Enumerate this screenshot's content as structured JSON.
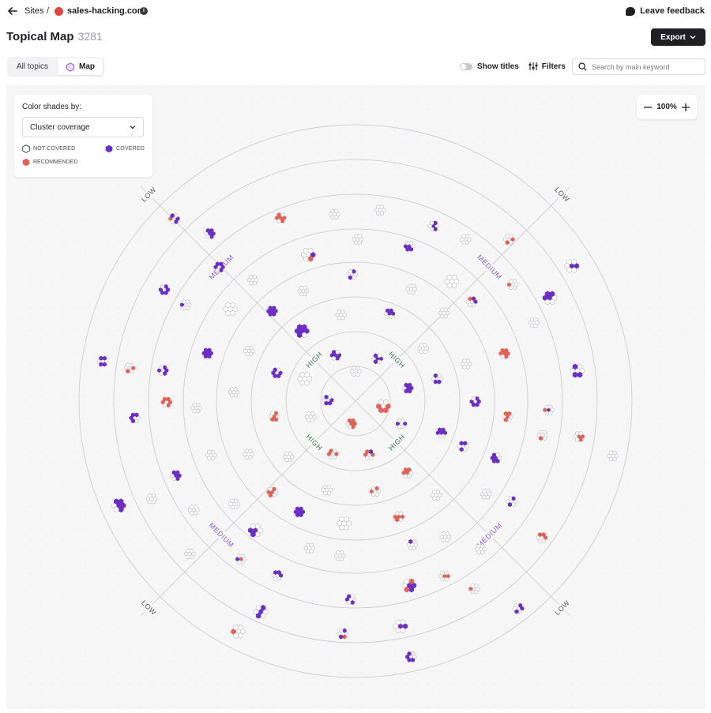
{
  "breadcrumb": {
    "root": "Sites",
    "separator": "/",
    "site": "sales-hacking.com"
  },
  "feedback_label": "Leave feedback",
  "page": {
    "title": "Topical Map",
    "count": "3281"
  },
  "export_label": "Export",
  "tabs": [
    {
      "label": "All topics",
      "active": false
    },
    {
      "label": "Map",
      "active": true
    }
  ],
  "toolbar": {
    "show_titles_label": "Show titles",
    "show_titles_on": false,
    "filters_label": "Filters"
  },
  "search": {
    "placeholder": "Search by main keyword",
    "value": ""
  },
  "legend": {
    "title": "Color shades by:",
    "selected": "Cluster coverage",
    "not_covered": "NOT COVERED",
    "covered": "COVERED",
    "recommended": "RECOMMENDED"
  },
  "zoom": {
    "level": "100%"
  },
  "map": {
    "zone_labels": {
      "high": "HIGH",
      "medium": "MEDIUM",
      "low": "LOW"
    }
  },
  "colors": {
    "covered": "#6b2fc4",
    "recommended": "#e0635a",
    "not_covered_stroke": "#b8b8c0",
    "high_label": "#3f7d4e",
    "medium_label": "#8b5cd6",
    "low_label": "#5a5a62"
  },
  "icons": {
    "back": "arrow-left-icon",
    "info": "info-icon",
    "feedback": "chat-bubble-icon",
    "export_chevron": "chevron-down-icon",
    "map_tab": "hexagon-icon",
    "filters": "sliders-icon",
    "search": "search-icon",
    "zoom_out": "minus-icon",
    "zoom_in": "plus-icon"
  }
}
